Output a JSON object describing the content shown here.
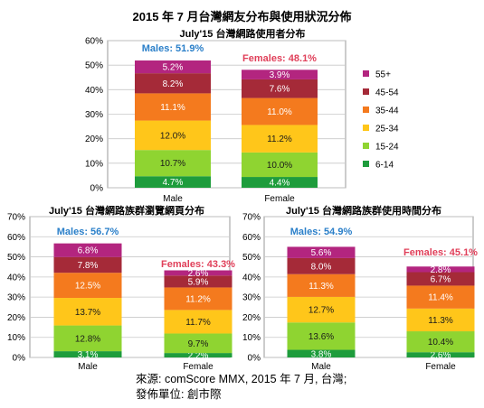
{
  "title": "2015 年 7 月台灣網友分布與使用狀況分佈",
  "source_line1": "來源: comScore MMX, 2015 年 7 月, 台灣;",
  "source_line2": "發佈單位: 創市際",
  "colors": {
    "6-14": "#1e9c3c",
    "15-24": "#8fd431",
    "25-34": "#ffc61a",
    "35-44": "#f47a1e",
    "45-54": "#a52a38",
    "55+": "#b3257f",
    "males_text": "#2a7fc9",
    "females_text": "#e0405a"
  },
  "legend": [
    "55+",
    "45-54",
    "35-44",
    "25-34",
    "15-24",
    "6-14"
  ],
  "chart_data": [
    {
      "type": "bar",
      "stacked": true,
      "title": "July'15 台灣網路使用者分布",
      "categories": [
        "Male",
        "Female"
      ],
      "ylim": [
        0,
        60
      ],
      "yticks": [
        "0%",
        "10%",
        "20%",
        "30%",
        "40%",
        "50%",
        "60%"
      ],
      "group_labels": [
        "Males: 51.9%",
        "Females: 48.1%"
      ],
      "series": [
        {
          "name": "6-14",
          "values": [
            4.7,
            4.4
          ]
        },
        {
          "name": "15-24",
          "values": [
            10.7,
            10.0
          ]
        },
        {
          "name": "25-34",
          "values": [
            12.0,
            11.2
          ]
        },
        {
          "name": "35-44",
          "values": [
            11.1,
            11.0
          ]
        },
        {
          "name": "45-54",
          "values": [
            8.2,
            7.6
          ]
        },
        {
          "name": "55+",
          "values": [
            5.2,
            3.9
          ]
        }
      ],
      "labels": [
        [
          "4.7%",
          "10.7%",
          "12.0%",
          "11.1%",
          "8.2%",
          "5.2%"
        ],
        [
          "4.4%",
          "10.0%",
          "11.2%",
          "11.0%",
          "7.6%",
          "3.9%"
        ]
      ],
      "legend": "right"
    },
    {
      "type": "bar",
      "stacked": true,
      "title": "July'15 台灣網路族群瀏覽網頁分布",
      "categories": [
        "Male",
        "Female"
      ],
      "ylim": [
        0,
        70
      ],
      "yticks": [
        "0%",
        "10%",
        "20%",
        "30%",
        "40%",
        "50%",
        "60%",
        "70%"
      ],
      "group_labels": [
        "Males: 56.7%",
        "Females: 43.3%"
      ],
      "series": [
        {
          "name": "6-14",
          "values": [
            3.1,
            2.2
          ]
        },
        {
          "name": "15-24",
          "values": [
            12.8,
            9.7
          ]
        },
        {
          "name": "25-34",
          "values": [
            13.7,
            11.7
          ]
        },
        {
          "name": "35-44",
          "values": [
            12.5,
            11.2
          ]
        },
        {
          "name": "45-54",
          "values": [
            7.8,
            5.9
          ]
        },
        {
          "name": "55+",
          "values": [
            6.8,
            2.6
          ]
        }
      ],
      "labels": [
        [
          "3.1%",
          "12.8%",
          "13.7%",
          "12.5%",
          "7.8%",
          "6.8%"
        ],
        [
          "2.2%",
          "9.7%",
          "11.7%",
          "11.2%",
          "5.9%",
          "2.6%"
        ]
      ]
    },
    {
      "type": "bar",
      "stacked": true,
      "title": "July'15 台灣網路族群使用時間分布",
      "categories": [
        "Male",
        "Female"
      ],
      "ylim": [
        0,
        70
      ],
      "yticks": [
        "0%",
        "10%",
        "20%",
        "30%",
        "40%",
        "50%",
        "60%",
        "70%"
      ],
      "group_labels": [
        "Males: 54.9%",
        "Females: 45.1%"
      ],
      "series": [
        {
          "name": "6-14",
          "values": [
            3.8,
            2.6
          ]
        },
        {
          "name": "15-24",
          "values": [
            13.6,
            10.4
          ]
        },
        {
          "name": "25-34",
          "values": [
            12.7,
            11.3
          ]
        },
        {
          "name": "35-44",
          "values": [
            11.3,
            11.4
          ]
        },
        {
          "name": "45-54",
          "values": [
            8.0,
            6.7
          ]
        },
        {
          "name": "55+",
          "values": [
            5.6,
            2.8
          ]
        }
      ],
      "labels": [
        [
          "3.8%",
          "13.6%",
          "12.7%",
          "11.3%",
          "8.0%",
          "5.6%"
        ],
        [
          "2.6%",
          "10.4%",
          "11.3%",
          "11.4%",
          "6.7%",
          "2.8%"
        ]
      ]
    }
  ]
}
